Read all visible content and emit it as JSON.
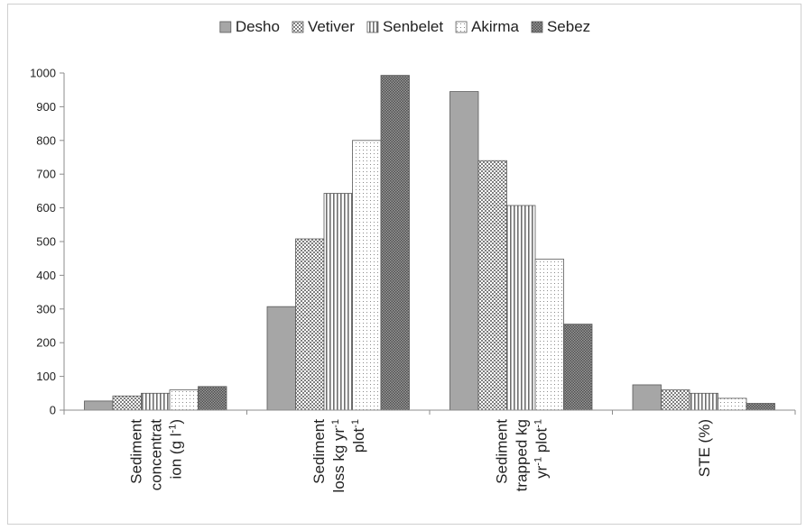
{
  "chart_data": {
    "type": "bar",
    "categories": [
      [
        "Sediment",
        "concentrat",
        "ion (g l",
        "-1",
        ")"
      ],
      [
        "Sediment",
        "loss kg  yr",
        "-1",
        "plot",
        "-1"
      ],
      [
        "Sediment",
        "trapped kg",
        "yr",
        "-1",
        " plot",
        "-1"
      ],
      [
        "STE (%)"
      ]
    ],
    "category_labels": [
      {
        "lines": [
          [
            {
              "t": "Sediment"
            }
          ],
          [
            {
              "t": "concentrat"
            }
          ],
          [
            {
              "t": "ion (g l"
            },
            {
              "t": "-1",
              "sup": true
            },
            {
              "t": ")"
            }
          ]
        ]
      },
      {
        "lines": [
          [
            {
              "t": "Sediment"
            }
          ],
          [
            {
              "t": "loss kg  yr"
            },
            {
              "t": "-1",
              "sup": true
            }
          ],
          [
            {
              "t": "plot"
            },
            {
              "t": "-1",
              "sup": true
            }
          ]
        ]
      },
      {
        "lines": [
          [
            {
              "t": "Sediment"
            }
          ],
          [
            {
              "t": "trapped kg"
            }
          ],
          [
            {
              "t": "yr"
            },
            {
              "t": "-1",
              "sup": true
            },
            {
              "t": " plot"
            },
            {
              "t": "-1",
              "sup": true
            }
          ]
        ]
      },
      {
        "lines": [
          [
            {
              "t": "STE (%)"
            }
          ]
        ]
      }
    ],
    "series": [
      {
        "name": "Desho",
        "values": [
          27,
          307,
          945,
          75
        ],
        "color": "#a6a6a6",
        "pattern": "solid"
      },
      {
        "name": "Vetiver",
        "values": [
          42,
          508,
          740,
          60
        ],
        "color": "#7f7f7f",
        "pattern": "checker"
      },
      {
        "name": "Senbelet",
        "values": [
          50,
          643,
          607,
          50
        ],
        "color": "#7f7f7f",
        "pattern": "vertical"
      },
      {
        "name": "Akirma",
        "values": [
          60,
          800,
          448,
          35
        ],
        "color": "#9a9a9a",
        "pattern": "dots"
      },
      {
        "name": "Sebez",
        "values": [
          70,
          993,
          255,
          20
        ],
        "color": "#6f6f6f",
        "pattern": "dense-checker"
      }
    ],
    "yticks": [
      "0",
      "100",
      "200",
      "300",
      "400",
      "500",
      "600",
      "700",
      "800",
      "900",
      "1000"
    ],
    "ylim": [
      0,
      1000
    ],
    "grid": false,
    "legend": "top-center",
    "title": "",
    "xlabel": "",
    "ylabel": ""
  }
}
